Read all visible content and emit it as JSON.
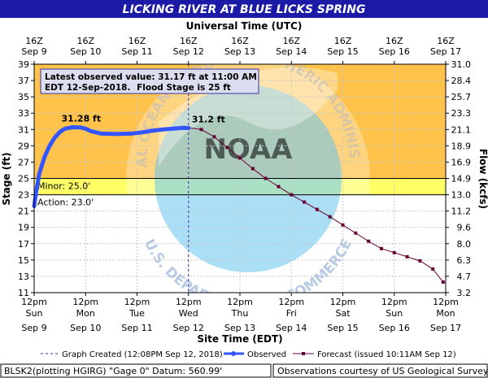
{
  "chart_data": {
    "type": "line",
    "title": "LICKING RIVER AT BLUE LICKS SPRING",
    "top_axis_title": "Universal Time (UTC)",
    "bottom_axis_title": "Site Time (EDT)",
    "left_axis_title": "Stage (ft)",
    "right_axis_title": "Flow (kcfs)",
    "y_range": [
      11,
      39
    ],
    "y_ticks": [
      "11",
      "13",
      "15",
      "17",
      "19",
      "21",
      "23",
      "25",
      "27",
      "29",
      "31",
      "33",
      "35",
      "37",
      "39"
    ],
    "y_ticks_values": [
      11,
      13,
      15,
      17,
      19,
      21,
      23,
      25,
      27,
      29,
      31,
      33,
      35,
      37,
      39
    ],
    "flow_ticks": [
      "3.2",
      "4.7",
      "6.3",
      "8.0",
      "9.6",
      "11.2",
      "13.0",
      "14.9",
      "16.9",
      "18.9",
      "21.1",
      "23.3",
      "25.7",
      "28.4",
      "31.0"
    ],
    "x_range_days": [
      9,
      17
    ],
    "utc_ticks": [
      {
        "time": "16Z",
        "date": "Sep  9"
      },
      {
        "time": "16Z",
        "date": "Sep 10"
      },
      {
        "time": "16Z",
        "date": "Sep 11"
      },
      {
        "time": "16Z",
        "date": "Sep 12"
      },
      {
        "time": "16Z",
        "date": "Sep 13"
      },
      {
        "time": "16Z",
        "date": "Sep 14"
      },
      {
        "time": "16Z",
        "date": "Sep 15"
      },
      {
        "time": "16Z",
        "date": "Sep 16"
      },
      {
        "time": "16Z",
        "date": "Sep 17"
      }
    ],
    "site_ticks": [
      {
        "time": "12pm",
        "day": "Sun",
        "date": "Sep 9"
      },
      {
        "time": "12pm",
        "day": "Mon",
        "date": "Sep 10"
      },
      {
        "time": "12pm",
        "day": "Tue",
        "date": "Sep 11"
      },
      {
        "time": "12pm",
        "day": "Wed",
        "date": "Sep 12"
      },
      {
        "time": "12pm",
        "day": "Thu",
        "date": "Sep 13"
      },
      {
        "time": "12pm",
        "day": "Fri",
        "date": "Sep 14"
      },
      {
        "time": "12pm",
        "day": "Sat",
        "date": "Sep 15"
      },
      {
        "time": "12pm",
        "day": "Sun",
        "date": "Sep 16"
      },
      {
        "time": "12pm",
        "day": "Mon",
        "date": "Sep 17"
      }
    ],
    "flood_bands": [
      {
        "name": "minor",
        "from": 25,
        "to": 39,
        "color": "#ffc24a"
      },
      {
        "name": "action",
        "from": 23,
        "to": 25,
        "color": "#ffff66"
      }
    ],
    "thresholds": [
      {
        "label": "Minor: 25.0'",
        "value": 25
      },
      {
        "label": "Action: 23.0'",
        "value": 23
      }
    ],
    "observed": {
      "name": "Observed",
      "color": "#3355ff",
      "peak_label": "31.28 ft",
      "x": [
        9.0,
        9.04,
        9.1,
        9.2,
        9.3,
        9.4,
        9.5,
        9.6,
        9.75,
        9.9,
        10.0,
        10.1,
        10.3,
        10.5,
        10.7,
        10.9,
        11.1,
        11.3,
        11.5,
        11.7,
        11.9,
        12.0
      ],
      "y": [
        21.6,
        23.4,
        25.6,
        27.6,
        29.0,
        30.0,
        30.7,
        31.1,
        31.28,
        31.25,
        31.1,
        30.8,
        30.5,
        30.45,
        30.45,
        30.5,
        30.65,
        30.85,
        31.0,
        31.1,
        31.2,
        31.17
      ]
    },
    "forecast": {
      "name": "Forecast (issued 10:11AM Sep 12)",
      "color": "#660033",
      "start_label": "31.2 ft",
      "x": [
        12.0,
        12.25,
        12.5,
        12.75,
        13.0,
        13.25,
        13.5,
        13.75,
        14.0,
        14.25,
        14.5,
        14.75,
        15.0,
        15.25,
        15.5,
        15.75,
        16.0,
        16.25,
        16.5,
        16.75,
        16.95
      ],
      "y": [
        31.2,
        31.0,
        30.1,
        28.8,
        27.5,
        26.2,
        25.0,
        24.0,
        23.0,
        22.1,
        21.2,
        20.3,
        19.3,
        18.3,
        17.3,
        16.4,
        15.9,
        15.4,
        14.9,
        13.9,
        12.3
      ]
    },
    "graph_created_x": 12.0,
    "graph_created_label": "Graph Created (12:08PM Sep 12, 2018)",
    "latest_observed_text_1": "Latest observed value: 31.17 ft at 11:00 AM",
    "latest_observed_text_2": "EDT 12-Sep-2018.",
    "flood_stage_text": "Flood Stage is 25 ft",
    "grid": true
  },
  "watermark": {
    "arc_text_top": "NATIONAL OCEANIC AND ATMOSPHERIC ADMINISTRATION",
    "arc_text_bottom": "U.S. DEPARTMENT OF COMMERCE",
    "center_text": "NOAA"
  },
  "footer": {
    "left": "BLSK2(plotting HGIRG) \"Gage 0\" Datum:  560.99'",
    "right": "Observations courtesy of US Geological Survey"
  },
  "colors": {
    "title_bg": "#1a1aa6",
    "minor_band": "#ffc24a",
    "action_band": "#ffff66",
    "plot_bg": "#ffffff",
    "info_box_bg": "#ddddf0"
  }
}
